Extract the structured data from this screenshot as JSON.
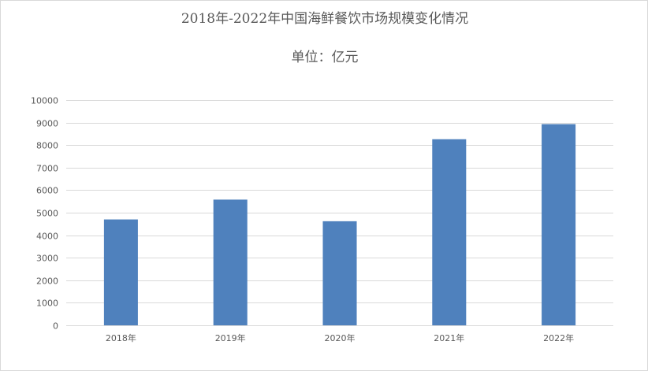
{
  "chart_data": {
    "type": "bar",
    "title": "2018年-2022年中国海鲜餐饮市场规模变化情况",
    "subtitle": "单位：亿元",
    "categories": [
      "2018年",
      "2019年",
      "2020年",
      "2021年",
      "2022年"
    ],
    "values": [
      4700,
      5580,
      4620,
      8260,
      8930
    ],
    "ylim": [
      0,
      10000
    ],
    "yticks": [
      0,
      1000,
      2000,
      3000,
      4000,
      5000,
      6000,
      7000,
      8000,
      9000,
      10000
    ],
    "grid": true,
    "legend": "none",
    "colors": {
      "bar": "#4f81bd",
      "grid": "#d9d9d9",
      "text": "#595959"
    }
  }
}
